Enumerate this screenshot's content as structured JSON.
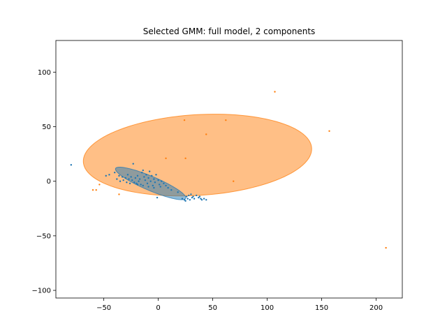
{
  "chart_data": {
    "type": "scatter",
    "title": "Selected GMM: full model, 2 components",
    "xlabel": "",
    "ylabel": "",
    "xlim": [
      -94,
      224
    ],
    "ylim": [
      -107,
      129
    ],
    "grid": false,
    "legend": "none",
    "x_ticks": [
      -50,
      0,
      50,
      100,
      150,
      200
    ],
    "y_ticks": [
      -100,
      -50,
      0,
      50,
      100
    ],
    "x_tick_labels": [
      "−50",
      "0",
      "50",
      "100",
      "150",
      "200"
    ],
    "y_tick_labels": [
      "−100",
      "−50",
      "0",
      "50",
      "100"
    ],
    "series": [
      {
        "color": "#1f77b4",
        "points": [
          [
            -80,
            15
          ],
          [
            -48,
            5
          ],
          [
            -45,
            6
          ],
          [
            -40,
            8
          ],
          [
            -38,
            2
          ],
          [
            -36,
            5
          ],
          [
            -35,
            0
          ],
          [
            -33,
            4
          ],
          [
            -32,
            1
          ],
          [
            -30,
            3
          ],
          [
            -29,
            -1
          ],
          [
            -28,
            6
          ],
          [
            -27,
            2
          ],
          [
            -26,
            -2
          ],
          [
            -25,
            4
          ],
          [
            -24,
            1
          ],
          [
            -23,
            16
          ],
          [
            -22,
            -1
          ],
          [
            -21,
            3
          ],
          [
            -20,
            -2
          ],
          [
            -19,
            5
          ],
          [
            -18,
            0
          ],
          [
            -17,
            2
          ],
          [
            -16,
            -3
          ],
          [
            -15,
            8
          ],
          [
            -14,
            10
          ],
          [
            -13,
            4
          ],
          [
            -12,
            1
          ],
          [
            -11,
            6
          ],
          [
            -10,
            -2
          ],
          [
            -9,
            3
          ],
          [
            -8,
            9
          ],
          [
            -7,
            0
          ],
          [
            -6,
            5
          ],
          [
            -5,
            -4
          ],
          [
            -4,
            2
          ],
          [
            -3,
            -1
          ],
          [
            -2,
            6
          ],
          [
            -1,
            -15
          ],
          [
            0,
            1
          ],
          [
            1,
            -3
          ],
          [
            2,
            -5
          ],
          [
            3,
            0
          ],
          [
            5,
            -2
          ],
          [
            7,
            -4
          ],
          [
            9,
            -6
          ],
          [
            12,
            -8
          ],
          [
            18,
            -10
          ],
          [
            22,
            -16
          ],
          [
            24,
            -17
          ],
          [
            25,
            -18
          ],
          [
            26,
            -14
          ],
          [
            27,
            -16
          ],
          [
            28,
            -13
          ],
          [
            29,
            -17
          ],
          [
            30,
            -12
          ],
          [
            31,
            -15
          ],
          [
            32,
            -14
          ],
          [
            33,
            -16
          ],
          [
            35,
            -13
          ],
          [
            37,
            -15
          ],
          [
            38,
            -14
          ],
          [
            39,
            -16
          ],
          [
            40,
            -17
          ],
          [
            42,
            -16
          ],
          [
            44,
            -17
          ],
          [
            -19,
            -3
          ],
          [
            -14,
            -4
          ],
          [
            -9,
            -5
          ],
          [
            -4,
            -6
          ]
        ]
      },
      {
        "color": "#ff7f0e",
        "points": [
          [
            -60,
            -8
          ],
          [
            -57,
            -8
          ],
          [
            -54,
            -3
          ],
          [
            -36,
            -12
          ],
          [
            7,
            21
          ],
          [
            24,
            56
          ],
          [
            25,
            21
          ],
          [
            44,
            43
          ],
          [
            62,
            56
          ],
          [
            69,
            0
          ],
          [
            107,
            82
          ],
          [
            157,
            46
          ],
          [
            209,
            -61
          ]
        ]
      }
    ],
    "ellipses": [
      {
        "color": "#ff7f0e",
        "center": [
          36,
          24
        ],
        "semi_axes": [
          105,
          37
        ],
        "angle_deg": 3.5,
        "alpha": 0.5
      },
      {
        "color": "#1f77b4",
        "center": [
          -7,
          -2
        ],
        "semi_axes": [
          35,
          6.5
        ],
        "angle_deg": -23,
        "alpha": 0.5
      }
    ]
  }
}
